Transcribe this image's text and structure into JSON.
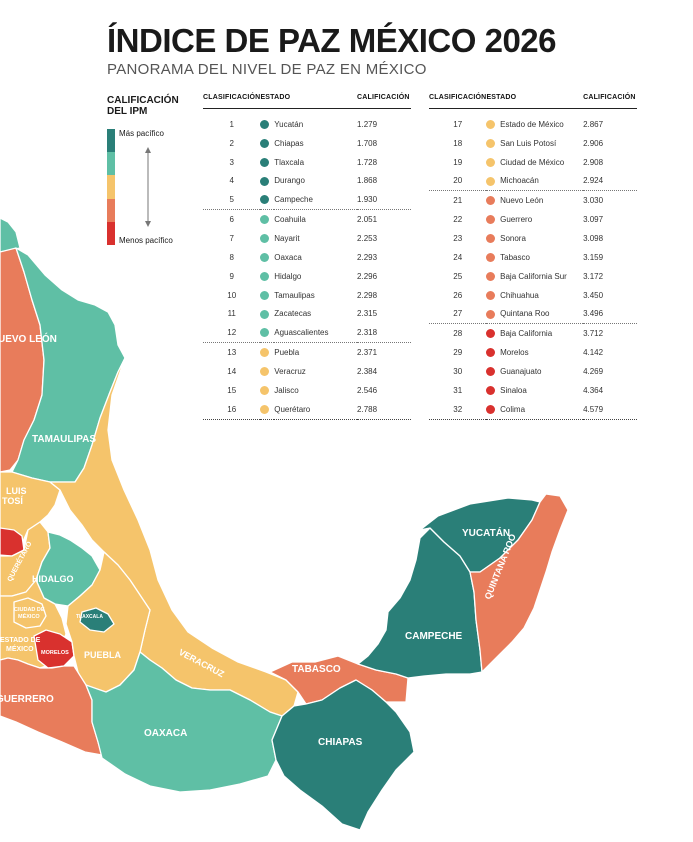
{
  "header": {
    "title": "ÍNDICE DE PAZ MÉXICO 2026",
    "subtitle": "PANORAMA DEL NIVEL DE PAZ EN MÉXICO"
  },
  "legend": {
    "title_line1": "CALIFICACIÓN",
    "title_line2": "DEL IPM",
    "top_label": "Más pacífico",
    "bottom_label": "Menos pacífico",
    "colors": [
      "#2a7f78",
      "#5fbfa5",
      "#f5c46b",
      "#e87c5b",
      "#d9312e"
    ]
  },
  "table": {
    "headers": {
      "rank": "CLASIFICACIÓN",
      "state": "ESTADO",
      "score": "CALIFICACIÓN"
    },
    "left": [
      {
        "rank": "1",
        "state": "Yucatán",
        "score": "1.279",
        "level": 0
      },
      {
        "rank": "2",
        "state": "Chiapas",
        "score": "1.708",
        "level": 0
      },
      {
        "rank": "3",
        "state": "Tlaxcala",
        "score": "1.728",
        "level": 0
      },
      {
        "rank": "4",
        "state": "Durango",
        "score": "1.868",
        "level": 0
      },
      {
        "rank": "5",
        "state": "Campeche",
        "score": "1.930",
        "level": 0
      },
      {
        "rank": "6",
        "state": "Coahuila",
        "score": "2.051",
        "level": 1
      },
      {
        "rank": "7",
        "state": "Nayarit",
        "score": "2.253",
        "level": 1
      },
      {
        "rank": "8",
        "state": "Oaxaca",
        "score": "2.293",
        "level": 1
      },
      {
        "rank": "9",
        "state": "Hidalgo",
        "score": "2.296",
        "level": 1
      },
      {
        "rank": "10",
        "state": "Tamaulipas",
        "score": "2.298",
        "level": 1
      },
      {
        "rank": "11",
        "state": "Zacatecas",
        "score": "2.315",
        "level": 1
      },
      {
        "rank": "12",
        "state": "Aguascalientes",
        "score": "2.318",
        "level": 1
      },
      {
        "rank": "13",
        "state": "Puebla",
        "score": "2.371",
        "level": 2
      },
      {
        "rank": "14",
        "state": "Veracruz",
        "score": "2.384",
        "level": 2
      },
      {
        "rank": "15",
        "state": "Jalisco",
        "score": "2.546",
        "level": 2
      },
      {
        "rank": "16",
        "state": "Querétaro",
        "score": "2.788",
        "level": 2
      }
    ],
    "right": [
      {
        "rank": "17",
        "state": "Estado de México",
        "score": "2.867",
        "level": 2
      },
      {
        "rank": "18",
        "state": "San Luis Potosí",
        "score": "2.906",
        "level": 2
      },
      {
        "rank": "19",
        "state": "Ciudad de México",
        "score": "2.908",
        "level": 2
      },
      {
        "rank": "20",
        "state": "Michoacán",
        "score": "2.924",
        "level": 2
      },
      {
        "rank": "21",
        "state": "Nuevo León",
        "score": "3.030",
        "level": 3
      },
      {
        "rank": "22",
        "state": "Guerrero",
        "score": "3.097",
        "level": 3
      },
      {
        "rank": "23",
        "state": "Sonora",
        "score": "3.098",
        "level": 3
      },
      {
        "rank": "24",
        "state": "Tabasco",
        "score": "3.159",
        "level": 3
      },
      {
        "rank": "25",
        "state": "Baja California Sur",
        "score": "3.172",
        "level": 3
      },
      {
        "rank": "26",
        "state": "Chihuahua",
        "score": "3.450",
        "level": 3
      },
      {
        "rank": "27",
        "state": "Quintana Roo",
        "score": "3.496",
        "level": 3
      },
      {
        "rank": "28",
        "state": "Baja California",
        "score": "3.712",
        "level": 4
      },
      {
        "rank": "29",
        "state": "Morelos",
        "score": "4.142",
        "level": 4
      },
      {
        "rank": "30",
        "state": "Guanajuato",
        "score": "4.269",
        "level": 4
      },
      {
        "rank": "31",
        "state": "Sinaloa",
        "score": "4.364",
        "level": 4
      },
      {
        "rank": "32",
        "state": "Colima",
        "score": "4.579",
        "level": 4
      }
    ]
  },
  "map": {
    "labels": {
      "nuevo_leon": "UEVO LEÓN",
      "tamaulipas": "TAMAULIPAS",
      "slp_line1": "LUIS",
      "slp_line2": "TOSÍ",
      "queretaro": "QUERÉTARO",
      "hidalgo": "HIDALGO",
      "cdmx_line1": "CIUDAD DE",
      "cdmx_line2": "MÉXICO",
      "tlaxcala": "TLAXCALA",
      "edomex_line1": "ESTADO DE",
      "edomex_line2": "MÉXICO",
      "morelos": "MORELOS",
      "puebla": "PUEBLA",
      "veracruz": "VERACRUZ",
      "guerrero": "GUERRERO",
      "oaxaca": "OAXACA",
      "tabasco": "TABASCO",
      "chiapas": "CHIAPAS",
      "campeche": "CAMPECHE",
      "yucatan": "YUCATÁN",
      "quintana_roo": "QUINTANA ROO"
    }
  }
}
